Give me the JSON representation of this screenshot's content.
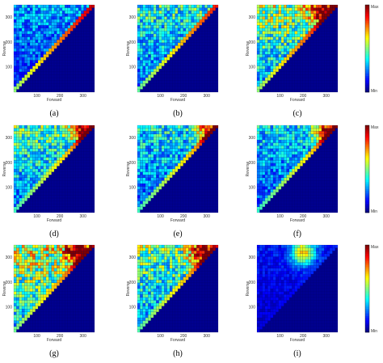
{
  "figure": {
    "background": "#ffffff",
    "plot_background": "#00008f"
  },
  "colorbar": {
    "max_label": "Max",
    "min_label": "Min",
    "colormap": "jet"
  },
  "chart_data": [
    {
      "type": "heatmap",
      "panel": "(a)",
      "xlabel": "Forward",
      "ylabel": "Reverse",
      "x_ticks": [
        100,
        200,
        300
      ],
      "y_ticks": [
        100,
        200,
        300
      ],
      "xlim": [
        0,
        350
      ],
      "ylim": [
        0,
        350
      ],
      "grid_cells": 30,
      "triangle": "upper-left",
      "diagonal_intensity": 0.85,
      "body_intensity": 0.25,
      "hotspot": null,
      "colorbar": false
    },
    {
      "type": "heatmap",
      "panel": "(b)",
      "xlabel": "Forward",
      "ylabel": "Reverse",
      "x_ticks": [
        100,
        200,
        300
      ],
      "y_ticks": [
        100,
        200,
        300
      ],
      "xlim": [
        0,
        350
      ],
      "ylim": [
        0,
        350
      ],
      "grid_cells": 30,
      "triangle": "upper-left",
      "diagonal_intensity": 0.78,
      "body_intensity": 0.35,
      "hotspot": null,
      "colorbar": false
    },
    {
      "type": "heatmap",
      "panel": "(c)",
      "xlabel": "Forward",
      "ylabel": "Reverse",
      "x_ticks": [
        100,
        200,
        300
      ],
      "y_ticks": [
        100,
        200,
        300
      ],
      "xlim": [
        0,
        350
      ],
      "ylim": [
        0,
        350
      ],
      "grid_cells": 30,
      "triangle": "upper-left",
      "diagonal_intensity": 0.85,
      "body_intensity": 0.45,
      "hotspot": [
        280,
        330
      ],
      "colorbar": true
    },
    {
      "type": "heatmap",
      "panel": "(d)",
      "xlabel": "Forward",
      "ylabel": "Reverse",
      "x_ticks": [
        100,
        200,
        300
      ],
      "y_ticks": [
        100,
        200,
        300
      ],
      "xlim": [
        0,
        350
      ],
      "ylim": [
        0,
        350
      ],
      "grid_cells": 30,
      "triangle": "upper-left",
      "diagonal_intensity": 0.72,
      "body_intensity": 0.38,
      "hotspot": [
        300,
        330
      ],
      "colorbar": false
    },
    {
      "type": "heatmap",
      "panel": "(e)",
      "xlabel": "Forward",
      "ylabel": "Reverse",
      "x_ticks": [
        100,
        200,
        300
      ],
      "y_ticks": [
        100,
        200,
        300
      ],
      "xlim": [
        0,
        350
      ],
      "ylim": [
        0,
        350
      ],
      "grid_cells": 30,
      "triangle": "upper-left",
      "diagonal_intensity": 0.72,
      "body_intensity": 0.32,
      "hotspot": [
        310,
        330
      ],
      "colorbar": false
    },
    {
      "type": "heatmap",
      "panel": "(f)",
      "xlabel": "Forward",
      "ylabel": "Reverse",
      "x_ticks": [
        100,
        200,
        300
      ],
      "y_ticks": [
        100,
        200,
        300
      ],
      "xlim": [
        0,
        350
      ],
      "ylim": [
        0,
        350
      ],
      "grid_cells": 30,
      "triangle": "upper-left",
      "diagonal_intensity": 0.7,
      "body_intensity": 0.3,
      "hotspot": [
        300,
        330
      ],
      "colorbar": true
    },
    {
      "type": "heatmap",
      "panel": "(g)",
      "xlabel": "Forward",
      "ylabel": "Reverse",
      "x_ticks": [
        100,
        200,
        300
      ],
      "y_ticks": [
        100,
        200,
        300
      ],
      "xlim": [
        0,
        350
      ],
      "ylim": [
        0,
        350
      ],
      "grid_cells": 30,
      "triangle": "upper-left",
      "diagonal_intensity": 0.8,
      "body_intensity": 0.5,
      "hotspot": [
        280,
        320
      ],
      "colorbar": false
    },
    {
      "type": "heatmap",
      "panel": "(h)",
      "xlabel": "Forward",
      "ylabel": "Reverse",
      "x_ticks": [
        100,
        200,
        300
      ],
      "y_ticks": [
        100,
        200,
        300
      ],
      "xlim": [
        0,
        350
      ],
      "ylim": [
        0,
        350
      ],
      "grid_cells": 30,
      "triangle": "upper-left",
      "diagonal_intensity": 0.75,
      "body_intensity": 0.42,
      "hotspot": [
        280,
        320
      ],
      "colorbar": false
    },
    {
      "type": "heatmap",
      "panel": "(i)",
      "xlabel": "Forward",
      "ylabel": "Reverse",
      "x_ticks": [
        100,
        200,
        300
      ],
      "y_ticks": [
        100,
        200,
        300
      ],
      "xlim": [
        0,
        350
      ],
      "ylim": [
        0,
        350
      ],
      "grid_cells": 30,
      "triangle": "upper-left",
      "diagonal_intensity": 0.15,
      "body_intensity": 0.12,
      "hotspot": [
        200,
        320
      ],
      "colorbar": true
    }
  ]
}
